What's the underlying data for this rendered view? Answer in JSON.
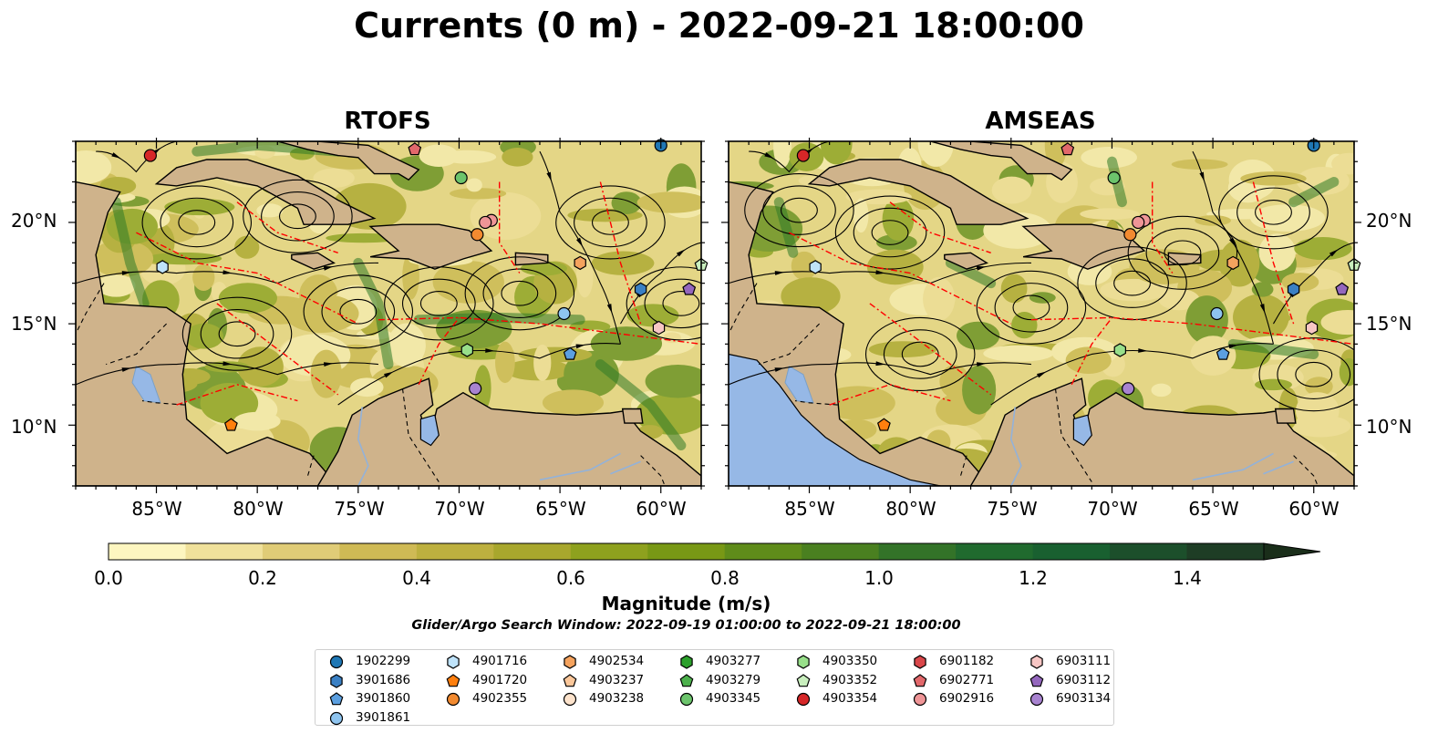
{
  "title": "Currents (0 m) - 2022-09-21 18:00:00",
  "panels": [
    {
      "title": "RTOFS"
    },
    {
      "title": "AMSEAS"
    }
  ],
  "lat_labels": [
    "20°N",
    "15°N",
    "10°N"
  ],
  "lon_labels": [
    "85°W",
    "80°W",
    "75°W",
    "70°W",
    "65°W",
    "60°W"
  ],
  "colorbar": {
    "label": "Magnitude (m/s)",
    "ticks": [
      "0.0",
      "0.2",
      "0.4",
      "0.6",
      "0.8",
      "1.0",
      "1.2",
      "1.4"
    ],
    "range": [
      0,
      1.5
    ],
    "extend": "max",
    "colors": [
      "#fdf6c0",
      "#f0e19b",
      "#e0cc77",
      "#cfba55",
      "#bdb03f",
      "#a8a72d",
      "#8ea11e",
      "#789815",
      "#5f8c1a",
      "#4a8020",
      "#337328",
      "#206a2e",
      "#196030",
      "#1c4f2b",
      "#1e3d25"
    ]
  },
  "search_window": "Glider/Argo Search Window: 2022-09-19 01:00:00 to 2022-09-21 18:00:00",
  "colors": {
    "land": "#cfb38b",
    "lake": "#96b8e6",
    "eez": "#ff0000"
  },
  "legend": [
    {
      "id": "1902299",
      "marker": "circle",
      "color": "#1f77b4"
    },
    {
      "id": "3901686",
      "marker": "hexagon",
      "color": "#3a80c4"
    },
    {
      "id": "3901860",
      "marker": "pentagon",
      "color": "#5b9fe0"
    },
    {
      "id": "3901861",
      "marker": "circle",
      "color": "#8ec4ef"
    },
    {
      "id": "4901716",
      "marker": "hexagon",
      "color": "#bfe3fa"
    },
    {
      "id": "4901720",
      "marker": "pentagon",
      "color": "#ff7f0e"
    },
    {
      "id": "4902355",
      "marker": "circle",
      "color": "#f28a30"
    },
    {
      "id": "4902534",
      "marker": "hexagon",
      "color": "#f5a35e"
    },
    {
      "id": "4903237",
      "marker": "pentagon",
      "color": "#fbc79a"
    },
    {
      "id": "4903238",
      "marker": "circle",
      "color": "#fde3cc"
    },
    {
      "id": "4903277",
      "marker": "hexagon",
      "color": "#2ca02c"
    },
    {
      "id": "4903279",
      "marker": "pentagon",
      "color": "#4cb04c"
    },
    {
      "id": "4903345",
      "marker": "circle",
      "color": "#6cc46c"
    },
    {
      "id": "4903350",
      "marker": "hexagon",
      "color": "#98df8a"
    },
    {
      "id": "4903352",
      "marker": "pentagon",
      "color": "#c9efbe"
    },
    {
      "id": "4903354",
      "marker": "circle",
      "color": "#d62728"
    },
    {
      "id": "6901182",
      "marker": "hexagon",
      "color": "#d9474a"
    },
    {
      "id": "6902771",
      "marker": "pentagon",
      "color": "#e2686b"
    },
    {
      "id": "6902916",
      "marker": "circle",
      "color": "#ef9597"
    },
    {
      "id": "6903111",
      "marker": "hexagon",
      "color": "#f7c6c4"
    },
    {
      "id": "6903112",
      "marker": "pentagon",
      "color": "#9467bd"
    },
    {
      "id": "6903134",
      "marker": "circle",
      "color": "#a883d0"
    }
  ],
  "map_extent": {
    "lon": [
      -89,
      -58
    ],
    "lat": [
      7,
      24
    ]
  },
  "floats": [
    {
      "id": "4903354",
      "lon": -85.3,
      "lat": 23.3
    },
    {
      "id": "6902771",
      "lon": -72.2,
      "lat": 23.6
    },
    {
      "id": "1902299",
      "lon": -60.0,
      "lat": 23.8
    },
    {
      "id": "4903345",
      "lon": -69.9,
      "lat": 22.2
    },
    {
      "id": "6902916",
      "lon": -68.4,
      "lat": 20.1
    },
    {
      "id": "6902916",
      "lon": -68.7,
      "lat": 20.0
    },
    {
      "id": "4902355",
      "lon": -69.1,
      "lat": 19.4
    },
    {
      "id": "4901716",
      "lon": -84.7,
      "lat": 17.8
    },
    {
      "id": "4902534",
      "lon": -64.0,
      "lat": 18.0
    },
    {
      "id": "4903352",
      "lon": -58.0,
      "lat": 17.9
    },
    {
      "id": "3901686",
      "lon": -61.0,
      "lat": 16.7
    },
    {
      "id": "6903112",
      "lon": -58.6,
      "lat": 16.7
    },
    {
      "id": "3901861",
      "lon": -64.8,
      "lat": 15.5
    },
    {
      "id": "6903111",
      "lon": -60.1,
      "lat": 14.8
    },
    {
      "id": "4903350",
      "lon": -69.6,
      "lat": 13.7
    },
    {
      "id": "3901860",
      "lon": -64.5,
      "lat": 13.5
    },
    {
      "id": "6903134",
      "lon": -69.2,
      "lat": 11.8
    },
    {
      "id": "4901720",
      "lon": -81.3,
      "lat": 10.0
    }
  ]
}
